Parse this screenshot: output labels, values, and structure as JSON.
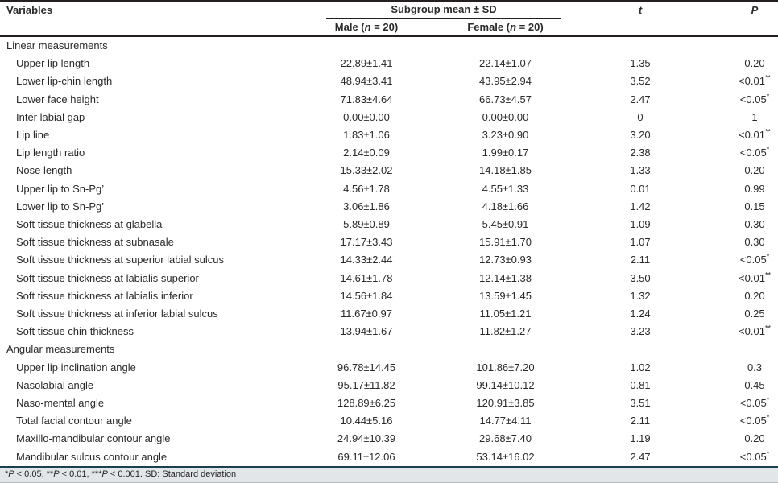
{
  "table": {
    "header": {
      "variables": "Variables",
      "subgroup": "Subgroup mean ± SD",
      "male": {
        "pre": "Male (",
        "n": "n",
        "post": " = 20)"
      },
      "female": {
        "pre": "Female (",
        "n": "n",
        "post": " = 20)"
      },
      "t": "t",
      "p": "P"
    },
    "rows": [
      {
        "type": "section",
        "label": "Linear measurements"
      },
      {
        "type": "data",
        "variable": "Upper lip length",
        "male": "22.89±1.41",
        "female": "22.14±1.07",
        "t": "1.35",
        "p": "0.20",
        "p_sup": ""
      },
      {
        "type": "data",
        "variable": "Lower lip-chin length",
        "male": "48.94±3.41",
        "female": "43.95±2.94",
        "t": "3.52",
        "p": "<0.01",
        "p_sup": "**"
      },
      {
        "type": "data",
        "variable": "Lower face height",
        "male": "71.83±4.64",
        "female": "66.73±4.57",
        "t": "2.47",
        "p": "<0.05",
        "p_sup": "*"
      },
      {
        "type": "data",
        "variable": "Inter labial gap",
        "male": "0.00±0.00",
        "female": "0.00±0.00",
        "t": "0",
        "p": "1",
        "p_sup": ""
      },
      {
        "type": "data",
        "variable": "Lip line",
        "male": "1.83±1.06",
        "female": "3.23±0.90",
        "t": "3.20",
        "p": "<0.01",
        "p_sup": "**"
      },
      {
        "type": "data",
        "variable": "Lip length ratio",
        "male": "2.14±0.09",
        "female": "1.99±0.17",
        "t": "2.38",
        "p": "<0.05",
        "p_sup": "*"
      },
      {
        "type": "data",
        "variable": "Nose length",
        "male": "15.33±2.02",
        "female": "14.18±1.85",
        "t": "1.33",
        "p": "0.20",
        "p_sup": ""
      },
      {
        "type": "data",
        "variable": "Upper lip to Sn-Pg’",
        "male": "4.56±1.78",
        "female": "4.55±1.33",
        "t": "0.01",
        "p": "0.99",
        "p_sup": ""
      },
      {
        "type": "data",
        "variable": "Lower lip to Sn-Pg’",
        "male": "3.06±1.86",
        "female": "4.18±1.66",
        "t": "1.42",
        "p": "0.15",
        "p_sup": ""
      },
      {
        "type": "data",
        "variable": "Soft tissue thickness at glabella",
        "male": "5.89±0.89",
        "female": "5.45±0.91",
        "t": "1.09",
        "p": "0.30",
        "p_sup": ""
      },
      {
        "type": "data",
        "variable": "Soft tissue thickness at subnasale",
        "male": "17.17±3.43",
        "female": "15.91±1.70",
        "t": "1.07",
        "p": "0.30",
        "p_sup": ""
      },
      {
        "type": "data",
        "variable": "Soft tissue thickness at superior labial sulcus",
        "male": "14.33±2.44",
        "female": "12.73±0.93",
        "t": "2.11",
        "p": "<0.05",
        "p_sup": "*"
      },
      {
        "type": "data",
        "variable": "Soft tissue thickness at labialis superior",
        "male": "14.61±1.78",
        "female": "12.14±1.38",
        "t": "3.50",
        "p": "<0.01",
        "p_sup": "**"
      },
      {
        "type": "data",
        "variable": "Soft tissue thickness at labialis inferior",
        "male": "14.56±1.84",
        "female": "13.59±1.45",
        "t": "1.32",
        "p": "0.20",
        "p_sup": ""
      },
      {
        "type": "data",
        "variable": "Soft tissue thickness at inferior labial sulcus",
        "male": "11.67±0.97",
        "female": "11.05±1.21",
        "t": "1.24",
        "p": "0.25",
        "p_sup": ""
      },
      {
        "type": "data",
        "variable": "Soft tissue chin thickness",
        "male": "13.94±1.67",
        "female": "11.82±1.27",
        "t": "3.23",
        "p": "<0.01",
        "p_sup": "**"
      },
      {
        "type": "section",
        "label": "Angular measurements"
      },
      {
        "type": "data",
        "variable": "Upper lip inclination angle",
        "male": "96.78±14.45",
        "female": "101.86±7.20",
        "t": "1.02",
        "p": "0.3",
        "p_sup": ""
      },
      {
        "type": "data",
        "variable": "Nasolabial angle",
        "male": "95.17±11.82",
        "female": "99.14±10.12",
        "t": "0.81",
        "p": "0.45",
        "p_sup": ""
      },
      {
        "type": "data",
        "variable": "Naso-mental angle",
        "male": "128.89±6.25",
        "female": "120.91±3.85",
        "t": "3.51",
        "p": "<0.05",
        "p_sup": "*"
      },
      {
        "type": "data",
        "variable": "Total facial contour angle",
        "male": "10.44±5.16",
        "female": "14.77±4.11",
        "t": "2.11",
        "p": "<0.05",
        "p_sup": "*"
      },
      {
        "type": "data",
        "variable": "Maxillo-mandibular contour angle",
        "male": "24.94±10.39",
        "female": "29.68±7.40",
        "t": "1.19",
        "p": "0.20",
        "p_sup": ""
      },
      {
        "type": "data",
        "variable": "Mandibular sulcus contour angle",
        "male": "69.11±12.06",
        "female": "53.14±16.02",
        "t": "2.47",
        "p": "<0.05",
        "p_sup": "*"
      }
    ],
    "footnote": {
      "s1": "*",
      "p": "P",
      "s2": " < 0.05, **",
      "s3": " < 0.01, ***",
      "s4": " < 0.001. SD: Standard deviation"
    },
    "colors": {
      "rule_dark": "#231f20",
      "rule_teal": "#1c4051",
      "footnote_bg": "#e3e6e8"
    }
  }
}
